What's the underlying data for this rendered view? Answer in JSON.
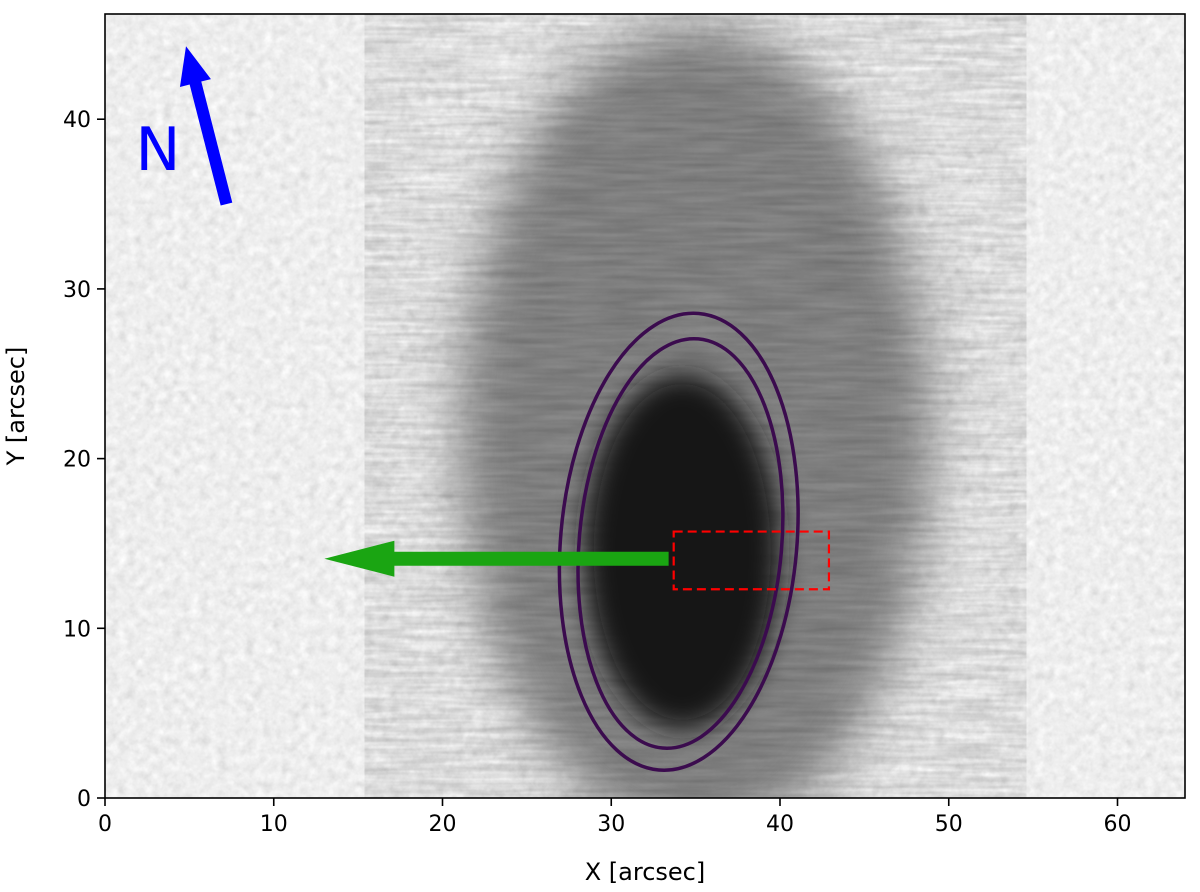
{
  "chart_data": {
    "type": "image",
    "xlabel": "X [arcsec]",
    "ylabel": "Y [arcsec]",
    "xlim": [
      0,
      64
    ],
    "ylim": [
      0,
      46.2
    ],
    "xticks": [
      0,
      10,
      20,
      30,
      40,
      50,
      60
    ],
    "yticks": [
      0,
      10,
      20,
      30,
      40
    ],
    "colormap": "gray",
    "north_indicator": {
      "label": "N",
      "color": "#0000ff",
      "tail": [
        7.2,
        35
      ],
      "head": [
        4.8,
        44.3
      ]
    },
    "contours": {
      "color": "#3b0b4e",
      "ellipses": [
        {
          "cx": 34.0,
          "cy": 15.1,
          "rx": 7.0,
          "ry": 13.5,
          "angle_deg": 5
        },
        {
          "cx": 34.1,
          "cy": 15.0,
          "rx": 6.0,
          "ry": 12.1,
          "angle_deg": 5
        }
      ]
    },
    "arrow": {
      "color": "#1aa512",
      "from": [
        33.4,
        14.1
      ],
      "to": [
        13.0,
        14.1
      ]
    },
    "box": {
      "color": "#ff0000",
      "x": [
        33.7,
        42.9
      ],
      "y": [
        12.3,
        15.7
      ],
      "style": "dashed"
    },
    "sunspot": {
      "umbra": {
        "cx": 34.2,
        "cy": 14.5,
        "rx": 5.8,
        "ry": 10.5
      },
      "penumbra": {
        "cx": 35.0,
        "cy": 21.5,
        "rx": 14.0,
        "ry": 24.0
      }
    }
  }
}
